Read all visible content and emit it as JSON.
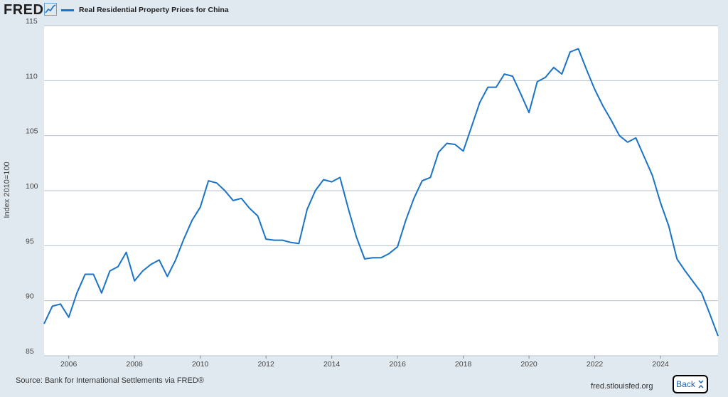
{
  "header": {
    "logo_text": "FRED",
    "logo_icon": "line-chart-icon",
    "legend_label": "Real Residential Property Prices for China"
  },
  "colors": {
    "series": "#1a73c7",
    "background": "#e1e9f0",
    "plot": "#ffffff",
    "grid": "#b8c0c8"
  },
  "chart_data": {
    "type": "line",
    "title": "",
    "xlabel": "",
    "ylabel": "Index 2010=100",
    "ylim": [
      85,
      115
    ],
    "yticks": [
      85,
      90,
      95,
      100,
      105,
      110,
      115
    ],
    "xlim": [
      2005.25,
      2025.75
    ],
    "xticks": [
      2006,
      2008,
      2010,
      2012,
      2014,
      2016,
      2018,
      2020,
      2022,
      2024
    ],
    "grid": "horizontal",
    "series": [
      {
        "name": "Real Residential Property Prices for China",
        "x": [
          2005.25,
          2005.5,
          2005.75,
          2006.0,
          2006.25,
          2006.5,
          2006.75,
          2007.0,
          2007.25,
          2007.5,
          2007.75,
          2008.0,
          2008.25,
          2008.5,
          2008.75,
          2009.0,
          2009.25,
          2009.5,
          2009.75,
          2010.0,
          2010.25,
          2010.5,
          2010.75,
          2011.0,
          2011.25,
          2011.5,
          2011.75,
          2012.0,
          2012.25,
          2012.5,
          2012.75,
          2013.0,
          2013.25,
          2013.5,
          2013.75,
          2014.0,
          2014.25,
          2014.5,
          2014.75,
          2015.0,
          2015.25,
          2015.5,
          2015.75,
          2016.0,
          2016.25,
          2016.5,
          2016.75,
          2017.0,
          2017.25,
          2017.5,
          2017.75,
          2018.0,
          2018.25,
          2018.5,
          2018.75,
          2019.0,
          2019.25,
          2019.5,
          2019.75,
          2020.0,
          2020.25,
          2020.5,
          2020.75,
          2021.0,
          2021.25,
          2021.5,
          2021.75,
          2022.0,
          2022.25,
          2022.5,
          2022.75,
          2023.0,
          2023.25,
          2023.5,
          2023.75,
          2024.0,
          2024.25,
          2024.5,
          2024.75,
          2025.0,
          2025.25,
          2025.5,
          2025.75
        ],
        "values": [
          87.9,
          89.5,
          89.7,
          88.5,
          90.7,
          92.4,
          92.4,
          90.7,
          92.7,
          93.1,
          94.4,
          91.8,
          92.7,
          93.3,
          93.7,
          92.2,
          93.7,
          95.6,
          97.3,
          98.5,
          100.9,
          100.7,
          100.0,
          99.1,
          99.3,
          98.4,
          97.7,
          95.6,
          95.5,
          95.5,
          95.3,
          95.2,
          98.3,
          100.0,
          101.0,
          100.8,
          101.2,
          98.4,
          95.8,
          93.8,
          93.9,
          93.9,
          94.3,
          94.9,
          97.3,
          99.3,
          100.9,
          101.2,
          103.5,
          104.3,
          104.2,
          103.6,
          105.8,
          108.0,
          109.4,
          109.4,
          110.6,
          110.4,
          108.8,
          107.1,
          109.9,
          110.3,
          111.2,
          110.6,
          112.6,
          112.9,
          111.0,
          109.2,
          107.7,
          106.4,
          105.0,
          104.4,
          104.8,
          103.1,
          101.4,
          98.9,
          96.8,
          93.8,
          92.7,
          91.7,
          90.7,
          88.8,
          86.8
        ]
      }
    ]
  },
  "footer": {
    "source": "Source: Bank for International Settlements via FRED®",
    "url": "fred.stlouisfed.org",
    "back_label": "Back",
    "back_icon": "collapse-arrows-icon"
  }
}
